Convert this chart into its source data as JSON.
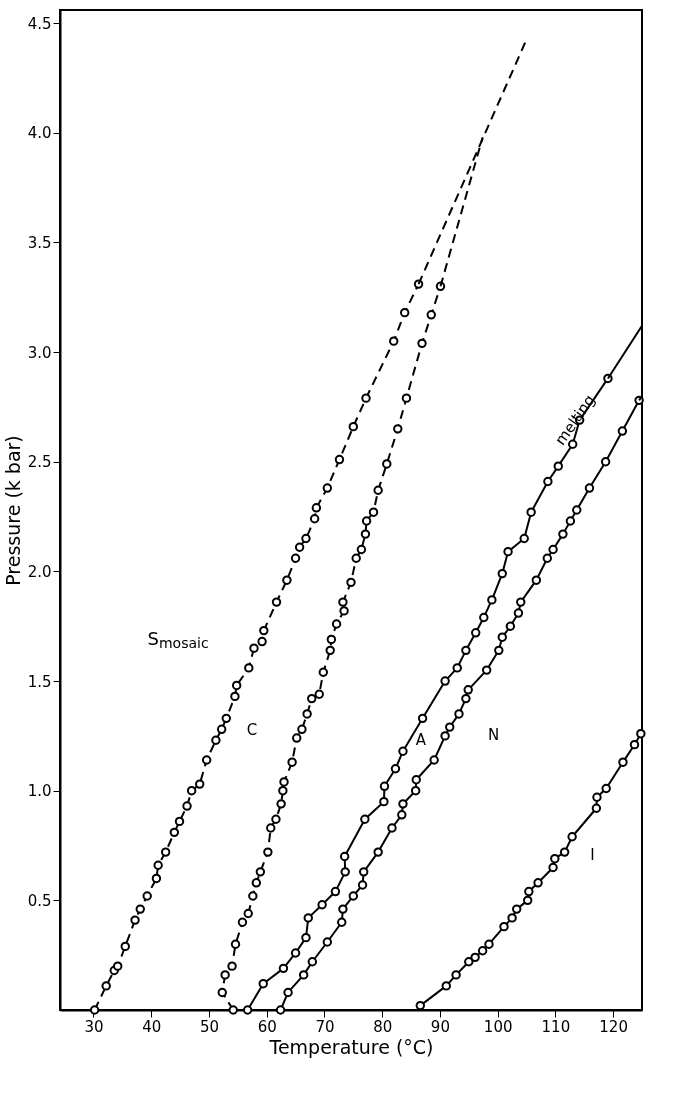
{
  "chart_data": {
    "type": "line",
    "xlabel": "Temperature (°C)",
    "ylabel": "Pressure (k bar)",
    "xlim": [
      24.2,
      125
    ],
    "ylim": [
      0,
      4.56
    ],
    "xticks": [
      30,
      40,
      50,
      60,
      70,
      80,
      90,
      100,
      110,
      120
    ],
    "yticks": [
      0.5,
      {
        "value": 1,
        "label": "1.0"
      },
      1.5,
      {
        "value": 2,
        "label": "2.0"
      },
      2.5,
      {
        "value": 3,
        "label": "3.0"
      },
      3.5,
      {
        "value": 4,
        "label": "4.0"
      },
      4.5
    ],
    "grid": false,
    "series": [
      {
        "color": "#000000",
        "marker": "circle",
        "line_style": "dashed",
        "x": [
          30.2,
          32.2,
          33.6,
          34.2,
          35.5,
          37.2,
          38.1,
          39.3,
          40.9,
          41.2,
          42.5,
          44.0,
          44.9,
          46.2,
          47.0,
          48.4,
          49.6,
          51.2,
          52.2,
          53.0,
          54.5,
          54.8,
          56.9,
          57.8,
          59.2,
          59.5,
          61.7,
          63.5,
          65.0,
          65.7,
          66.8,
          68.3,
          68.6,
          70.5,
          72.6,
          75.0,
          77.2,
          82.0,
          83.9,
          86.3
        ],
        "values": [
          0,
          0.11,
          0.18,
          0.2,
          0.29,
          0.41,
          0.46,
          0.52,
          0.6,
          0.66,
          0.72,
          0.81,
          0.86,
          0.93,
          1.0,
          1.03,
          1.14,
          1.23,
          1.28,
          1.33,
          1.43,
          1.48,
          1.56,
          1.65,
          1.68,
          1.73,
          1.86,
          1.96,
          2.06,
          2.11,
          2.15,
          2.24,
          2.29,
          2.38,
          2.51,
          2.66,
          2.79,
          3.05,
          3.18,
          3.31
        ]
      },
      {
        "color": "#000000",
        "marker": "circle",
        "line_style": "dashed",
        "x": [
          54.2,
          52.3,
          52.8,
          54.0,
          54.6,
          55.8,
          56.8,
          57.6,
          58.2,
          58.9,
          60.2,
          60.7,
          61.6,
          62.5,
          62.8,
          63.0,
          64.4,
          65.2,
          66.1,
          67.0,
          67.8,
          69.1,
          69.8,
          71.0,
          71.2,
          72.1,
          73.4,
          73.2,
          74.6,
          75.5,
          76.4,
          77.1,
          77.3,
          78.5,
          79.3,
          80.8,
          82.7,
          84.2,
          86.9,
          88.5,
          90.1
        ],
        "values": [
          0,
          0.08,
          0.16,
          0.2,
          0.3,
          0.4,
          0.44,
          0.52,
          0.58,
          0.63,
          0.72,
          0.83,
          0.87,
          0.94,
          1.0,
          1.04,
          1.13,
          1.24,
          1.28,
          1.35,
          1.42,
          1.44,
          1.54,
          1.64,
          1.69,
          1.76,
          1.82,
          1.86,
          1.95,
          2.06,
          2.1,
          2.17,
          2.23,
          2.27,
          2.37,
          2.49,
          2.65,
          2.79,
          3.04,
          3.17,
          3.3
        ]
      },
      {
        "color": "#000000",
        "marker": "circle",
        "line_style": "solid",
        "x": [
          56.7,
          59.4,
          62.9,
          65.0,
          66.8,
          67.2,
          69.6,
          71.9,
          73.6,
          73.5,
          77.0,
          80.3,
          80.4,
          82.3,
          83.6,
          87.0,
          90.9,
          93.0,
          94.5,
          96.2,
          97.6,
          99.0,
          100.8,
          101.8,
          104.6,
          105.8,
          108.7,
          110.5,
          113.0,
          114.2,
          119.1
        ],
        "values": [
          0,
          0.12,
          0.19,
          0.26,
          0.33,
          0.42,
          0.48,
          0.54,
          0.63,
          0.7,
          0.87,
          0.95,
          1.02,
          1.1,
          1.18,
          1.33,
          1.5,
          1.56,
          1.64,
          1.72,
          1.79,
          1.87,
          1.99,
          2.09,
          2.15,
          2.27,
          2.41,
          2.48,
          2.58,
          2.69,
          2.88
        ]
      },
      {
        "color": "#000000",
        "marker": "circle",
        "line_style": "solid",
        "x": [
          62.4,
          63.7,
          66.4,
          67.9,
          70.5,
          73.0,
          73.2,
          75.0,
          76.6,
          76.8,
          79.3,
          81.7,
          83.4,
          83.6,
          85.8,
          85.9,
          89.0,
          90.9,
          91.7,
          93.3,
          94.5,
          94.9,
          98.1,
          100.2,
          100.8,
          102.2,
          103.6,
          104.0,
          106.7,
          108.6,
          109.6,
          111.3,
          112.6,
          113.7,
          115.9,
          118.7,
          121.6,
          124.5
        ],
        "values": [
          0,
          0.08,
          0.16,
          0.22,
          0.31,
          0.4,
          0.46,
          0.52,
          0.57,
          0.63,
          0.72,
          0.83,
          0.89,
          0.94,
          1.0,
          1.05,
          1.14,
          1.25,
          1.29,
          1.35,
          1.42,
          1.46,
          1.55,
          1.64,
          1.7,
          1.75,
          1.81,
          1.86,
          1.96,
          2.06,
          2.1,
          2.17,
          2.23,
          2.28,
          2.38,
          2.5,
          2.64,
          2.78
        ]
      },
      {
        "color": "#000000",
        "marker": "circle",
        "line_style": "solid",
        "x": [
          86.6,
          91.1,
          92.8,
          95.0,
          96.1,
          97.4,
          98.5,
          101.1,
          102.5,
          103.3,
          105.2,
          105.4,
          107.0,
          109.6,
          109.9,
          111.6,
          112.9,
          117.1,
          117.2,
          118.8,
          121.7,
          123.7,
          124.8
        ],
        "values": [
          0.02,
          0.11,
          0.16,
          0.22,
          0.24,
          0.27,
          0.3,
          0.38,
          0.42,
          0.46,
          0.5,
          0.54,
          0.58,
          0.65,
          0.69,
          0.72,
          0.79,
          0.92,
          0.97,
          1.01,
          1.13,
          1.21,
          1.26
        ]
      },
      {
        "color": "#000000",
        "marker": "none",
        "line_style": "dashed",
        "x": [
          86.3,
          104.9
        ],
        "values": [
          3.31,
          4.42
        ]
      },
      {
        "color": "#000000",
        "marker": "none",
        "line_style": "dashed",
        "x": [
          90.1,
          97.4
        ],
        "values": [
          3.3,
          3.98
        ]
      },
      {
        "color": "#000000",
        "marker": "none",
        "line_style": "solid",
        "x": [
          119.1,
          125
        ],
        "values": [
          2.88,
          3.12
        ]
      },
      {
        "color": "#000000",
        "marker": "none",
        "line_style": "solid",
        "x": [
          124.5,
          125
        ],
        "values": [
          2.78,
          2.8
        ]
      }
    ],
    "annotations": [
      "S$_{mosaic}$",
      "C",
      "A",
      "N",
      "I",
      "melting"
    ]
  }
}
